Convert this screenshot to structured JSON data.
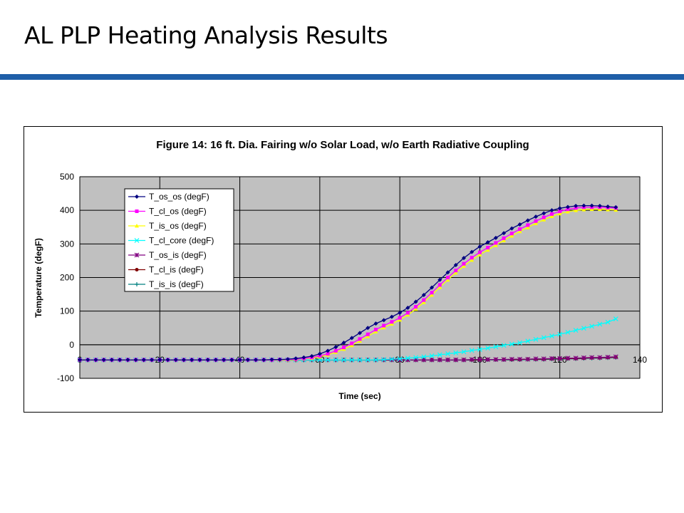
{
  "slide": {
    "title": "AL PLP Heating Analysis Results",
    "accent_color": "#1f5fa8"
  },
  "chart_data": {
    "type": "line",
    "title": "Figure 14: 16 ft. Dia. Fairing w/o Solar Load, w/o Earth Radiative Coupling",
    "xlabel": "Time (sec)",
    "ylabel": "Temperature (degF)",
    "xlim": [
      0,
      140
    ],
    "ylim": [
      -100,
      500
    ],
    "xticks": [
      0,
      20,
      40,
      60,
      80,
      100,
      120,
      140
    ],
    "yticks": [
      -100,
      0,
      100,
      200,
      300,
      400,
      500
    ],
    "grid": true,
    "plot_background": "#c0c0c0",
    "legend_position": "top-left",
    "x": [
      0,
      2,
      4,
      6,
      8,
      10,
      12,
      14,
      16,
      18,
      20,
      22,
      24,
      26,
      28,
      30,
      32,
      34,
      36,
      38,
      40,
      42,
      44,
      46,
      48,
      50,
      52,
      54,
      56,
      58,
      60,
      62,
      64,
      66,
      68,
      70,
      72,
      74,
      76,
      78,
      80,
      82,
      84,
      86,
      88,
      90,
      92,
      94,
      96,
      98,
      100,
      102,
      104,
      106,
      108,
      110,
      112,
      114,
      116,
      118,
      120,
      122,
      124,
      126,
      128,
      130,
      132,
      134
    ],
    "series": [
      {
        "name": "T_os_os (degF)",
        "color": "#000080",
        "marker": "diamond",
        "values": [
          -45,
          -45,
          -45,
          -45,
          -45,
          -45,
          -45,
          -45,
          -45,
          -45,
          -45,
          -45,
          -45,
          -45,
          -45,
          -45,
          -45,
          -45,
          -45,
          -45,
          -45,
          -45,
          -45,
          -45,
          -44,
          -44,
          -43,
          -41,
          -38,
          -34,
          -27,
          -18,
          -7,
          6,
          20,
          35,
          50,
          63,
          73,
          83,
          95,
          110,
          128,
          148,
          170,
          193,
          215,
          237,
          258,
          276,
          292,
          305,
          318,
          332,
          346,
          358,
          370,
          381,
          391,
          400,
          406,
          410,
          413,
          414,
          414,
          413,
          411,
          409
        ]
      },
      {
        "name": "T_cl_os (degF)",
        "color": "#ff00ff",
        "marker": "square",
        "values": [
          -45,
          -45,
          -45,
          -45,
          -45,
          -45,
          -45,
          -45,
          -45,
          -45,
          -45,
          -45,
          -45,
          -45,
          -45,
          -45,
          -45,
          -45,
          -45,
          -45,
          -45,
          -45,
          -45,
          -45,
          -45,
          -44,
          -44,
          -43,
          -41,
          -38,
          -33,
          -27,
          -18,
          -8,
          4,
          17,
          31,
          45,
          57,
          68,
          80,
          95,
          113,
          133,
          155,
          178,
          200,
          221,
          241,
          259,
          275,
          289,
          303,
          317,
          331,
          344,
          356,
          368,
          379,
          389,
          397,
          403,
          407,
          409,
          409,
          409,
          408,
          407
        ]
      },
      {
        "name": "T_is_os (degF)",
        "color": "#ffff00",
        "marker": "triangle",
        "values": [
          -45,
          -45,
          -45,
          -45,
          -45,
          -45,
          -45,
          -45,
          -45,
          -45,
          -45,
          -45,
          -45,
          -45,
          -45,
          -45,
          -45,
          -45,
          -45,
          -45,
          -45,
          -45,
          -45,
          -45,
          -45,
          -45,
          -45,
          -44,
          -42,
          -40,
          -36,
          -30,
          -22,
          -13,
          -2,
          11,
          25,
          39,
          51,
          62,
          74,
          89,
          106,
          126,
          148,
          171,
          193,
          214,
          234,
          252,
          268,
          282,
          296,
          310,
          324,
          337,
          349,
          361,
          372,
          382,
          390,
          396,
          400,
          402,
          403,
          403,
          402,
          401
        ]
      },
      {
        "name": "T_cl_core (degF)",
        "color": "#00ffff",
        "marker": "x",
        "values": [
          -45,
          -45,
          -45,
          -45,
          -45,
          -45,
          -45,
          -45,
          -45,
          -45,
          -45,
          -45,
          -45,
          -45,
          -45,
          -45,
          -45,
          -45,
          -45,
          -45,
          -45,
          -45,
          -45,
          -45,
          -45,
          -45,
          -45,
          -45,
          -45,
          -45,
          -45,
          -45,
          -45,
          -45,
          -45,
          -45,
          -45,
          -45,
          -44,
          -43,
          -42,
          -40,
          -38,
          -36,
          -33,
          -30,
          -27,
          -24,
          -21,
          -17,
          -14,
          -10,
          -6,
          -2,
          2,
          6,
          11,
          16,
          21,
          26,
          31,
          37,
          43,
          49,
          55,
          61,
          67,
          77
        ]
      },
      {
        "name": "T_os_is (degF)",
        "color": "#800080",
        "marker": "star",
        "values": [
          -45,
          -45,
          -45,
          -45,
          -45,
          -45,
          -45,
          -45,
          -45,
          -45,
          -45,
          -45,
          -45,
          -45,
          -45,
          -45,
          -45,
          -45,
          -45,
          -45,
          -45,
          -45,
          -45,
          -45,
          -45,
          -45,
          -45,
          -45,
          -45,
          -45,
          -45,
          -45,
          -45,
          -45,
          -45,
          -45,
          -45,
          -45,
          -45,
          -45,
          -45,
          -45,
          -45,
          -45,
          -45,
          -45,
          -45,
          -45,
          -45,
          -44,
          -44,
          -44,
          -44,
          -44,
          -43,
          -43,
          -43,
          -42,
          -42,
          -41,
          -41,
          -40,
          -40,
          -39,
          -38,
          -38,
          -37,
          -36
        ]
      },
      {
        "name": "T_cl_is (degF)",
        "color": "#800000",
        "marker": "circle",
        "values": [
          -45,
          -45,
          -45,
          -45,
          -45,
          -45,
          -45,
          -45,
          -45,
          -45,
          -45,
          -45,
          -45,
          -45,
          -45,
          -45,
          -45,
          -45,
          -45,
          -45,
          -45,
          -45,
          -45,
          -45,
          -45,
          -45,
          -45,
          -45,
          -45,
          -45,
          -45,
          -45,
          -45,
          -45,
          -45,
          -45,
          -45,
          -45,
          -45,
          -45,
          -45,
          -45,
          -45,
          -45,
          -45,
          -45,
          -45,
          -45,
          -45,
          -45,
          -45,
          -44,
          -44,
          -44,
          -44,
          -44,
          -43,
          -43,
          -43,
          -42,
          -42,
          -41,
          -41,
          -40,
          -39,
          -39,
          -38,
          -37
        ]
      },
      {
        "name": "T_is_is (degF)",
        "color": "#008080",
        "marker": "plus",
        "values": [
          -46,
          -46,
          -46,
          -46,
          -46,
          -46,
          -46,
          -46,
          -46,
          -46,
          -46,
          -46,
          -46,
          -46,
          -46,
          -46,
          -46,
          -46,
          -46,
          -46,
          -46,
          -46,
          -46,
          -46,
          -46,
          -46,
          -46,
          -46,
          -46,
          -46,
          -46,
          -46,
          -46,
          -46,
          -46,
          -46,
          -46,
          -46,
          -46,
          -46,
          -46,
          -46,
          -46,
          -46,
          -46,
          -46,
          -46,
          -46,
          -46,
          -46,
          -46,
          -45,
          -45,
          -45,
          -45,
          -45,
          -44,
          -44,
          -44,
          -43,
          -43,
          -42,
          -42,
          -41,
          -40,
          -40,
          -39,
          -38
        ]
      }
    ]
  }
}
